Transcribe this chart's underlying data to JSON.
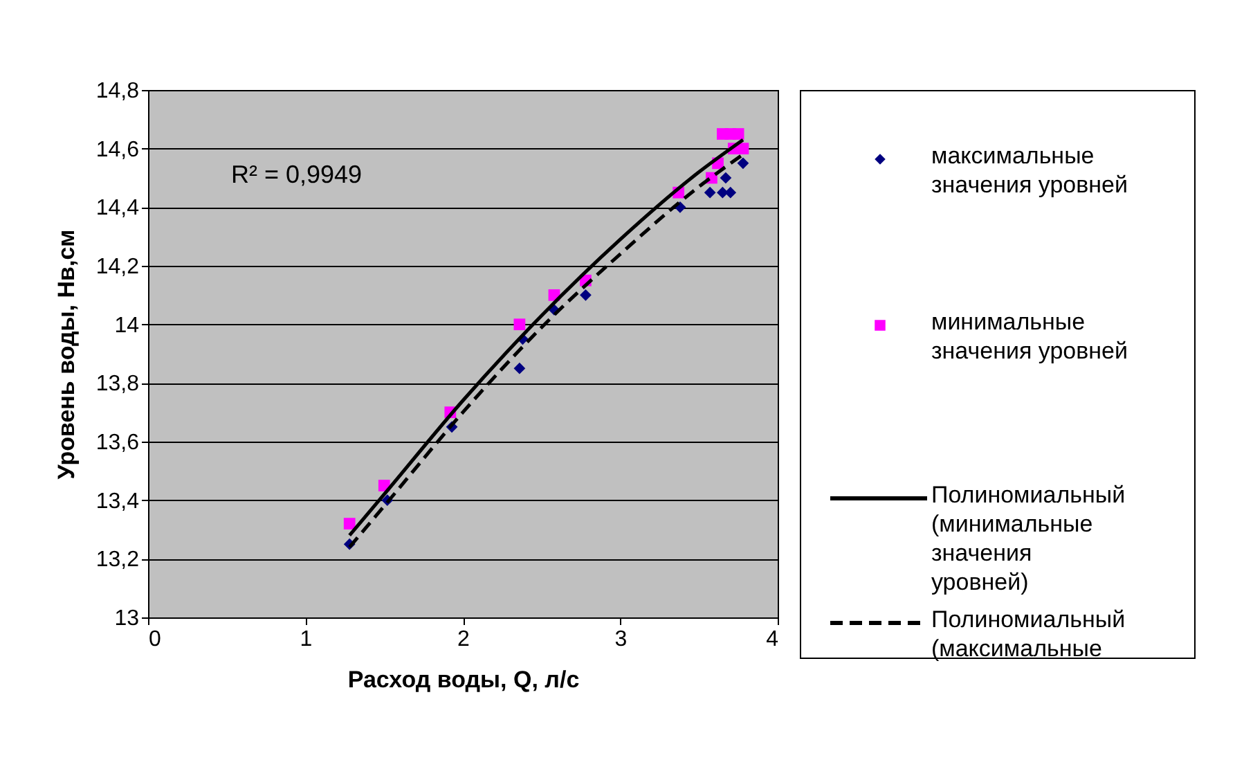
{
  "chart_data": {
    "type": "scatter",
    "xlabel": "Расход воды, Q, л/с",
    "ylabel": "Уровень воды, Нв,см",
    "annotations": [
      "R² = 0,9949"
    ],
    "xlim": [
      0,
      4
    ],
    "xticks": [
      0,
      1,
      2,
      3,
      4
    ],
    "ylim": [
      13,
      14.8
    ],
    "yticks": [
      13,
      {
        "value": 13.2,
        "label": "13,2"
      },
      {
        "value": 13.4,
        "label": "13,4"
      },
      {
        "value": 13.6,
        "label": "13,6"
      },
      {
        "value": 13.8,
        "label": "13,8"
      },
      14,
      {
        "value": 14.2,
        "label": "14,2"
      },
      {
        "value": 14.4,
        "label": "14,4"
      },
      {
        "value": 14.6,
        "label": "14,6"
      },
      {
        "value": 14.8,
        "label": "14,8"
      }
    ],
    "grid": "y",
    "legend": "right",
    "series": [
      {
        "name": "максимальные значения уровней",
        "color": "#000080",
        "marker": "diamond",
        "x": [
          1.28,
          1.52,
          1.93,
          2.36,
          2.38,
          2.58,
          2.78,
          3.38,
          3.57,
          3.65,
          3.7,
          3.67,
          3.78
        ],
        "values": [
          13.25,
          13.4,
          13.65,
          13.85,
          13.95,
          14.05,
          14.1,
          14.4,
          14.45,
          14.45,
          14.45,
          14.5,
          14.55
        ]
      },
      {
        "name": "минимальные значения уровней",
        "color": "#ff00ff",
        "marker": "square",
        "x": [
          1.28,
          1.5,
          1.92,
          2.36,
          2.58,
          2.78,
          3.37,
          3.58,
          3.62,
          3.65,
          3.7,
          3.75,
          3.78,
          3.72
        ],
        "values": [
          13.32,
          13.45,
          13.7,
          14.0,
          14.1,
          14.15,
          14.45,
          14.5,
          14.55,
          14.65,
          14.65,
          14.65,
          14.6,
          14.6
        ]
      },
      {
        "name": "Полиномиальный (минимальные значения уровней)",
        "type": "line",
        "color": "#000000",
        "line_style": "solid",
        "marker": "none",
        "x": [
          1.28,
          1.5,
          2.0,
          2.5,
          3.0,
          3.5,
          3.78
        ],
        "values": [
          13.28,
          13.42,
          13.74,
          14.03,
          14.29,
          14.52,
          14.63
        ]
      },
      {
        "name": "Полиномиальный (максимальные",
        "type": "line",
        "color": "#000000",
        "line_style": "dashed",
        "marker": "none",
        "x": [
          1.28,
          1.5,
          2.0,
          2.5,
          3.0,
          3.5,
          3.78
        ],
        "values": [
          13.24,
          13.38,
          13.7,
          13.99,
          14.24,
          14.47,
          14.58
        ]
      }
    ]
  }
}
